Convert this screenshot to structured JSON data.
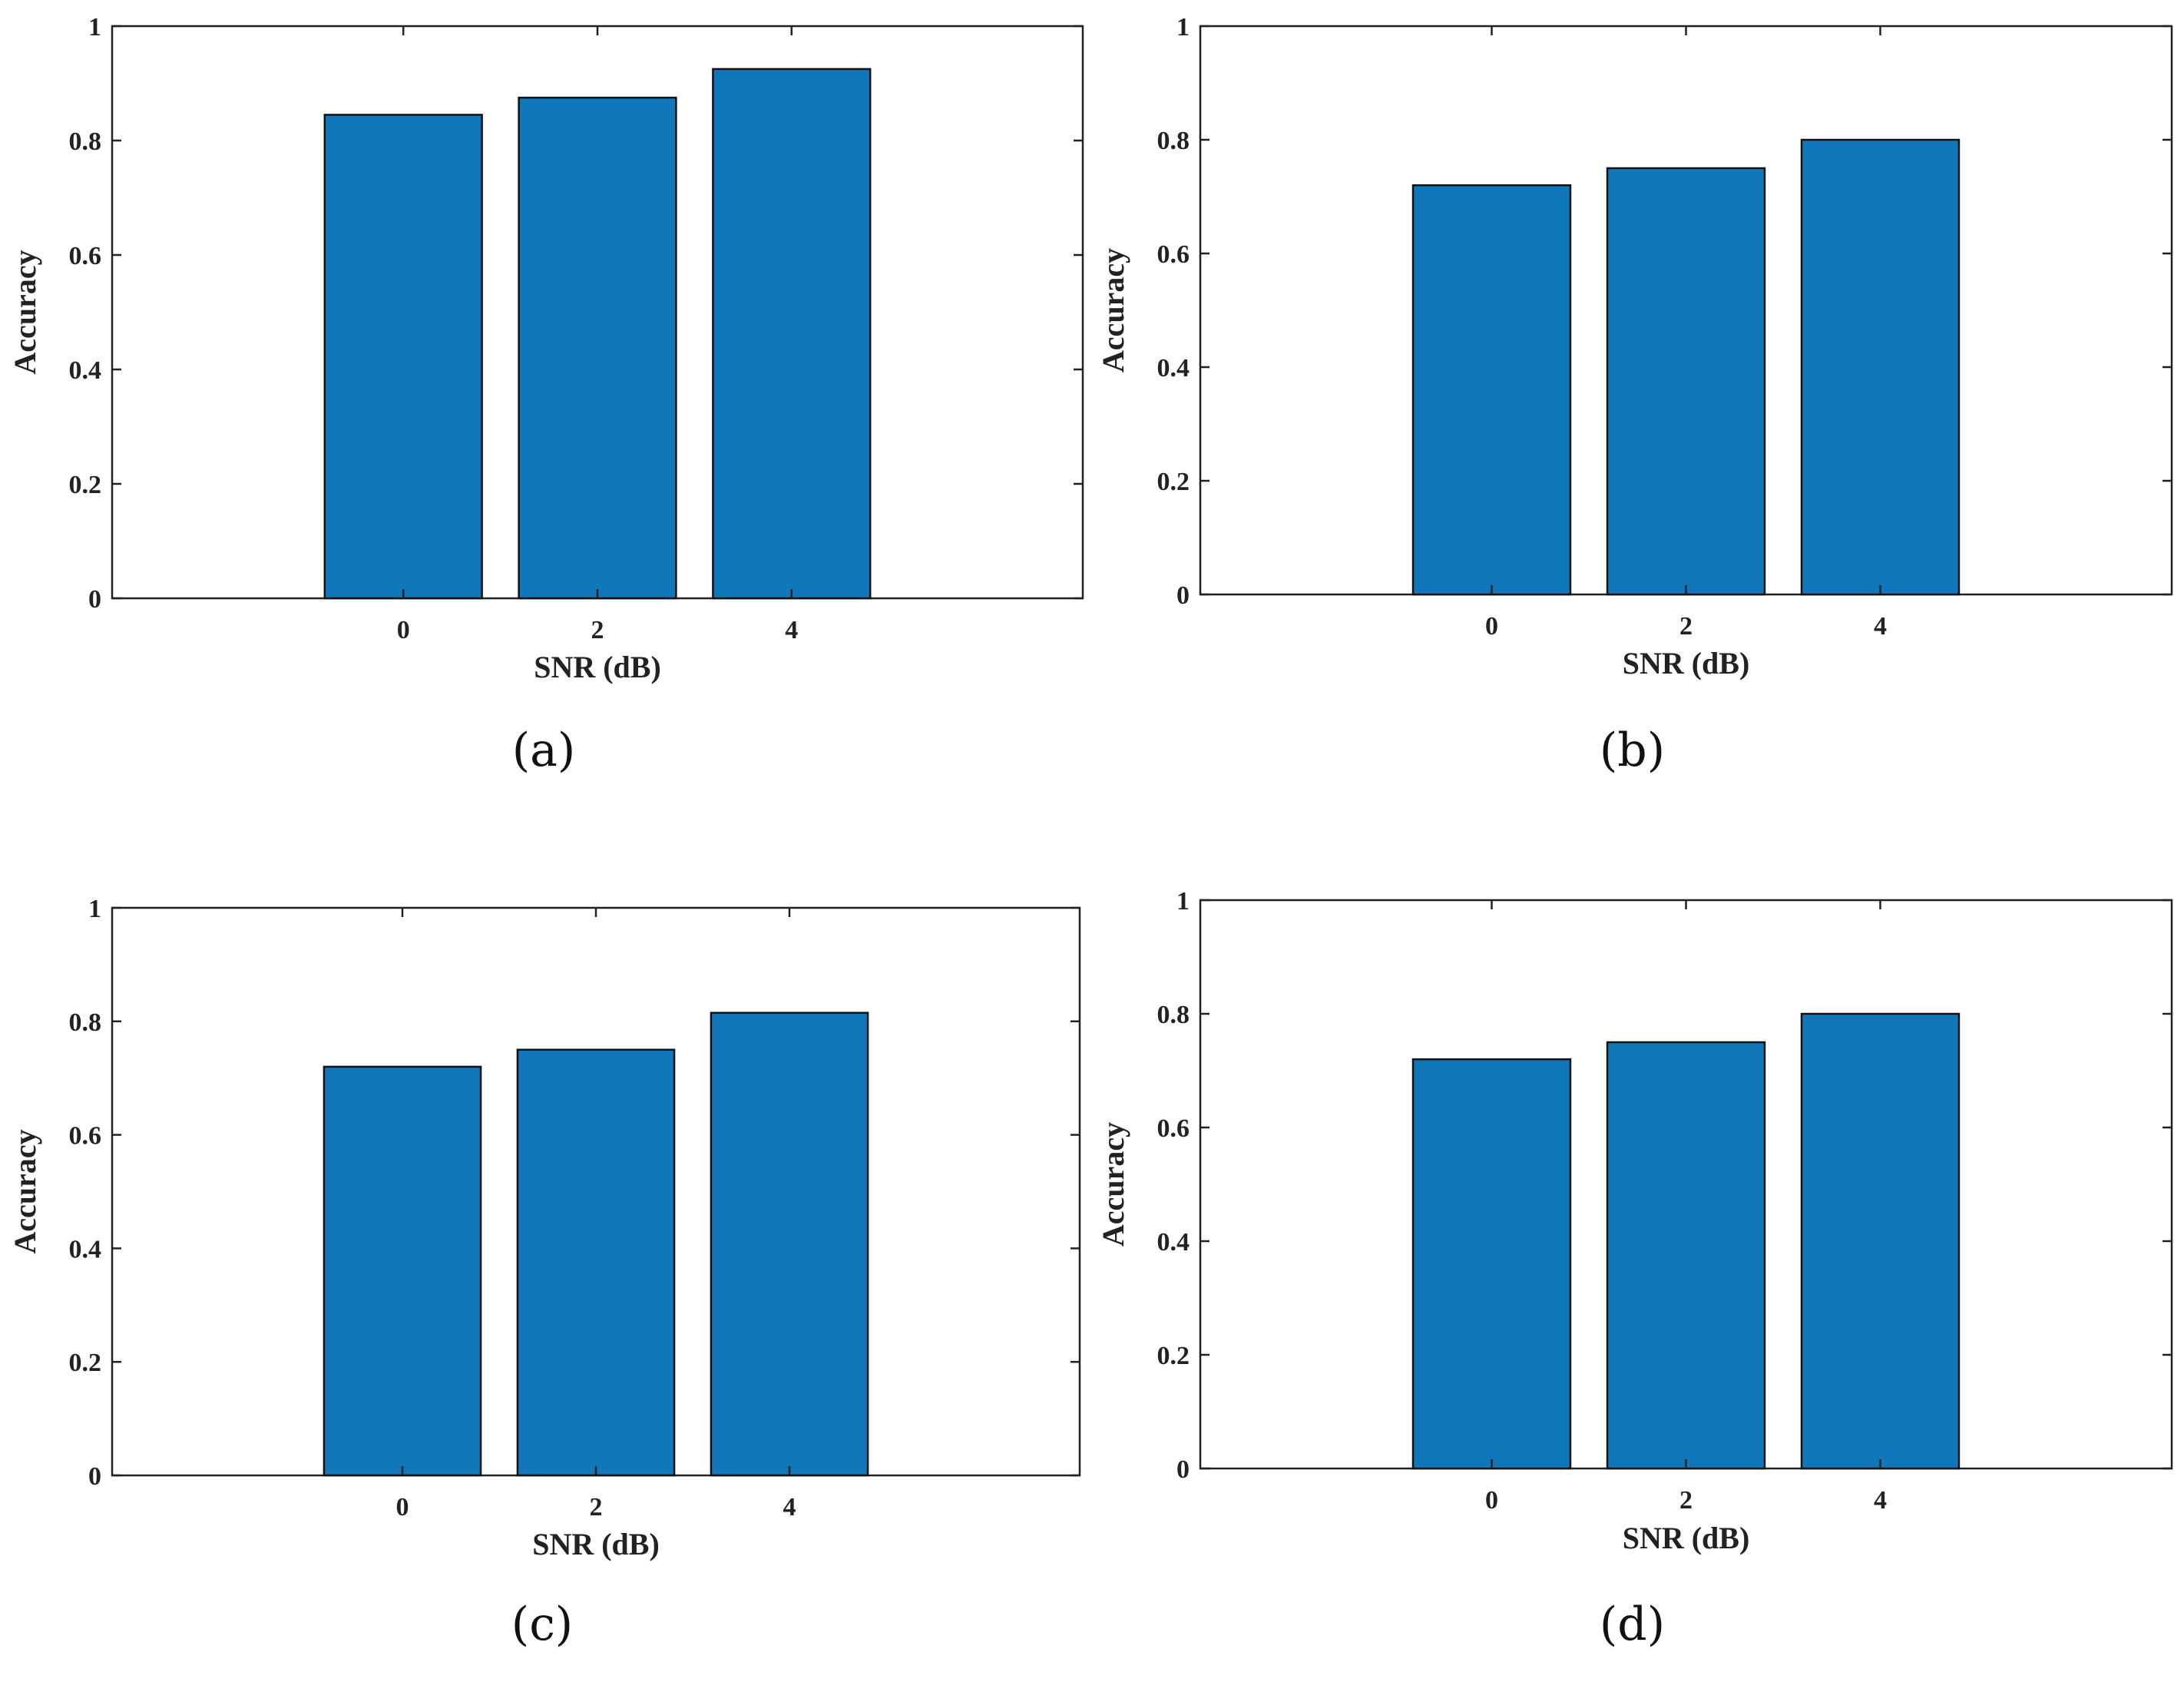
{
  "colors": {
    "bar": "#1177bb",
    "bar_edge": "#111111",
    "axis": "#222222"
  },
  "chart_data": [
    {
      "type": "bar",
      "panel": "(a)",
      "categories": [
        "0",
        "2",
        "4"
      ],
      "values": [
        0.845,
        0.875,
        0.925
      ],
      "xlabel": "SNR (dB)",
      "ylabel": "Accuracy",
      "ylim": [
        0,
        1
      ],
      "yticks": [
        "0",
        "0.2",
        "0.4",
        "0.6",
        "0.8",
        "1"
      ]
    },
    {
      "type": "bar",
      "panel": "(b)",
      "categories": [
        "0",
        "2",
        "4"
      ],
      "values": [
        0.72,
        0.75,
        0.8
      ],
      "xlabel": "SNR (dB)",
      "ylabel": "Accuracy",
      "ylim": [
        0,
        1
      ],
      "yticks": [
        "0",
        "0.2",
        "0.4",
        "0.6",
        "0.8",
        "1"
      ]
    },
    {
      "type": "bar",
      "panel": "(c)",
      "categories": [
        "0",
        "2",
        "4"
      ],
      "values": [
        0.72,
        0.75,
        0.815
      ],
      "xlabel": "SNR (dB)",
      "ylabel": "Accuracy",
      "ylim": [
        0,
        1
      ],
      "yticks": [
        "0",
        "0.2",
        "0.4",
        "0.6",
        "0.8",
        "1"
      ]
    },
    {
      "type": "bar",
      "panel": "(d)",
      "categories": [
        "0",
        "2",
        "4"
      ],
      "values": [
        0.72,
        0.75,
        0.8
      ],
      "xlabel": "SNR (dB)",
      "ylabel": "Accuracy",
      "ylim": [
        0,
        1
      ],
      "yticks": [
        "0",
        "0.2",
        "0.4",
        "0.6",
        "0.8",
        "1"
      ]
    }
  ]
}
